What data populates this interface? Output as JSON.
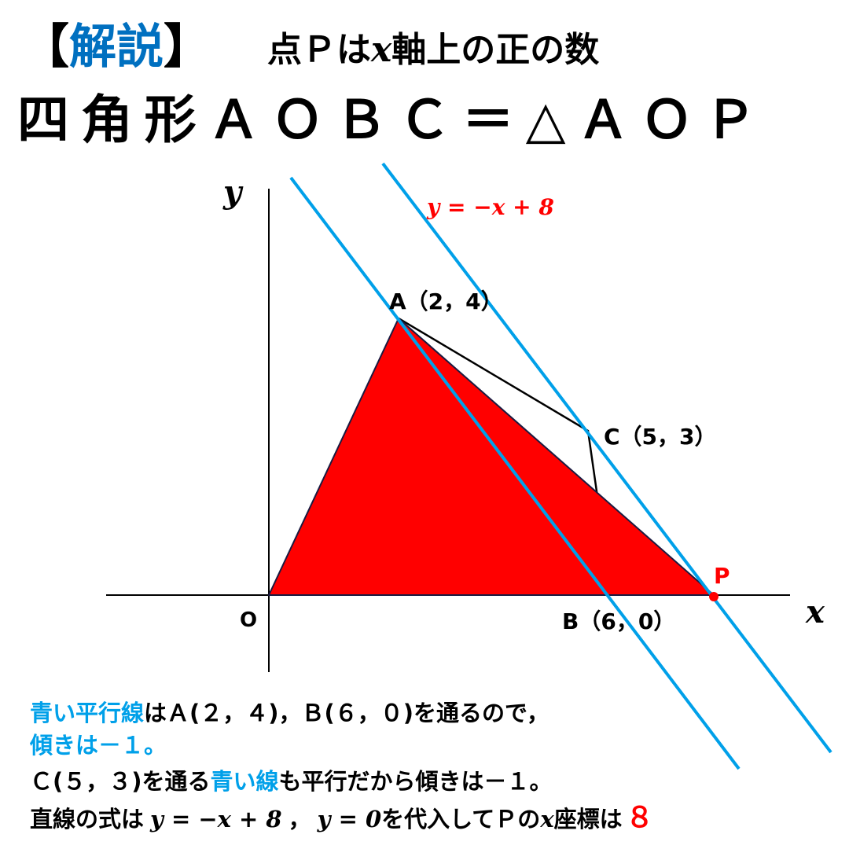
{
  "title": {
    "bracket_open": "【",
    "label": "解説",
    "bracket_close": "】",
    "condition_pre": "点Ｐは",
    "condition_var": "x",
    "condition_post": "軸上の正の数",
    "equation": "四角形ＡＯＢＣ＝△ＡＯＰ"
  },
  "diagram": {
    "axis_x_label": "x",
    "axis_y_label": "y",
    "origin_label": "O",
    "point_a": "A（2，4）",
    "point_b": "B（6，0）",
    "point_c": "C（5，3）",
    "point_p": "P",
    "line_equation": "y = −x + 8",
    "points": {
      "A": [
        2,
        4
      ],
      "B": [
        6,
        0
      ],
      "C": [
        5,
        3
      ],
      "O": [
        0,
        0
      ],
      "P": [
        8,
        0
      ]
    },
    "colors": {
      "fill": "#ff0000",
      "parallel_lines": "#00a0e9",
      "accent_blue": "#0070c0",
      "answer": "#ff0000"
    }
  },
  "explanation": {
    "line1_blue": "青い平行線",
    "line1_black": "はＡ(２，４)，Ｂ(６，０)を通るので，",
    "line2_blue": "傾きは－１。",
    "line3_black_a": "Ｃ(５，３)を通る",
    "line3_blue": "青い線",
    "line3_black_b": "も平行だから傾きは－１。",
    "line4_black_a": "直線の式は",
    "line4_eq1": "y = −x + 8",
    "line4_black_b": "，",
    "line4_eq2": "y = 0",
    "line4_black_c": "を代入してＰの",
    "line4_var": "x",
    "line4_black_d": "座標は",
    "answer": "８"
  }
}
